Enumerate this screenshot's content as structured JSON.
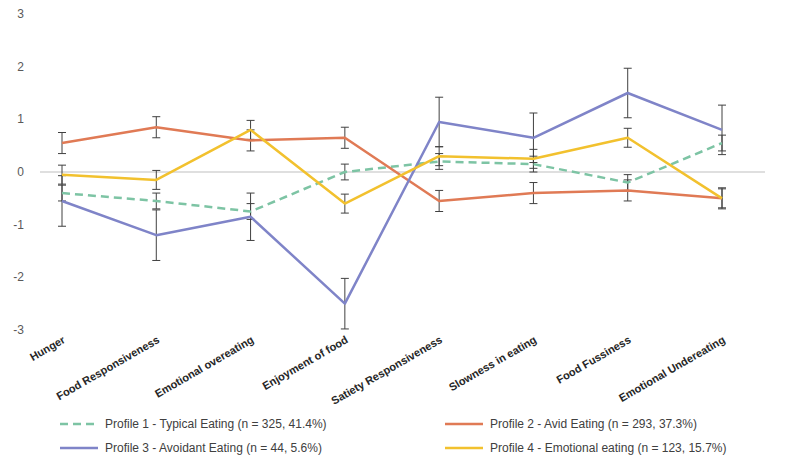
{
  "chart_data": {
    "type": "line",
    "categories": [
      "Hunger",
      "Food Responsiveness",
      "Emotional overeating",
      "Enjoyment of food",
      "Satiety Responsiveness",
      "Slowness in eating",
      "Food Fussiness",
      "Emotional Undereating"
    ],
    "ylim": [
      -3,
      3
    ],
    "yticks": [
      -3,
      -2,
      -1,
      0,
      1,
      2,
      3
    ],
    "grid": false,
    "legend": "bottom",
    "series": [
      {
        "name": "Profile 1 - Typical Eating (n = 325, 41.4%)",
        "color": "#7dc4a4",
        "line_style": "dashed",
        "marker": "none",
        "values": [
          -0.4,
          -0.55,
          -0.75,
          0.0,
          0.2,
          0.15,
          -0.2,
          0.55
        ],
        "errors": [
          0.15,
          0.15,
          0.15,
          0.15,
          0.15,
          0.15,
          0.15,
          0.15
        ]
      },
      {
        "name": "Profile 2 - Avid Eating (n = 293, 37.3%)",
        "color": "#e07a55",
        "line_style": "solid",
        "marker": "none",
        "values": [
          0.55,
          0.85,
          0.6,
          0.65,
          -0.55,
          -0.4,
          -0.35,
          -0.5
        ],
        "errors": [
          0.2,
          0.2,
          0.2,
          0.2,
          0.2,
          0.2,
          0.2,
          0.2
        ]
      },
      {
        "name": "Profile 3 - Avoidant Eating (n = 44, 5.6%)",
        "color": "#7f84c8",
        "line_style": "solid",
        "marker": "none",
        "values": [
          -0.55,
          -1.2,
          -0.85,
          -2.5,
          0.95,
          0.65,
          1.5,
          0.8
        ],
        "errors": [
          0.48,
          0.48,
          0.45,
          0.48,
          0.47,
          0.47,
          0.47,
          0.47
        ]
      },
      {
        "name": "Profile 4 - Emotional eating (n = 123, 15.7%)",
        "color": "#f2c12e",
        "line_style": "solid",
        "marker": "none",
        "values": [
          -0.05,
          -0.15,
          0.8,
          -0.6,
          0.3,
          0.25,
          0.65,
          -0.5
        ],
        "errors": [
          0.18,
          0.18,
          0.18,
          0.18,
          0.18,
          0.18,
          0.18,
          0.18
        ]
      }
    ]
  }
}
